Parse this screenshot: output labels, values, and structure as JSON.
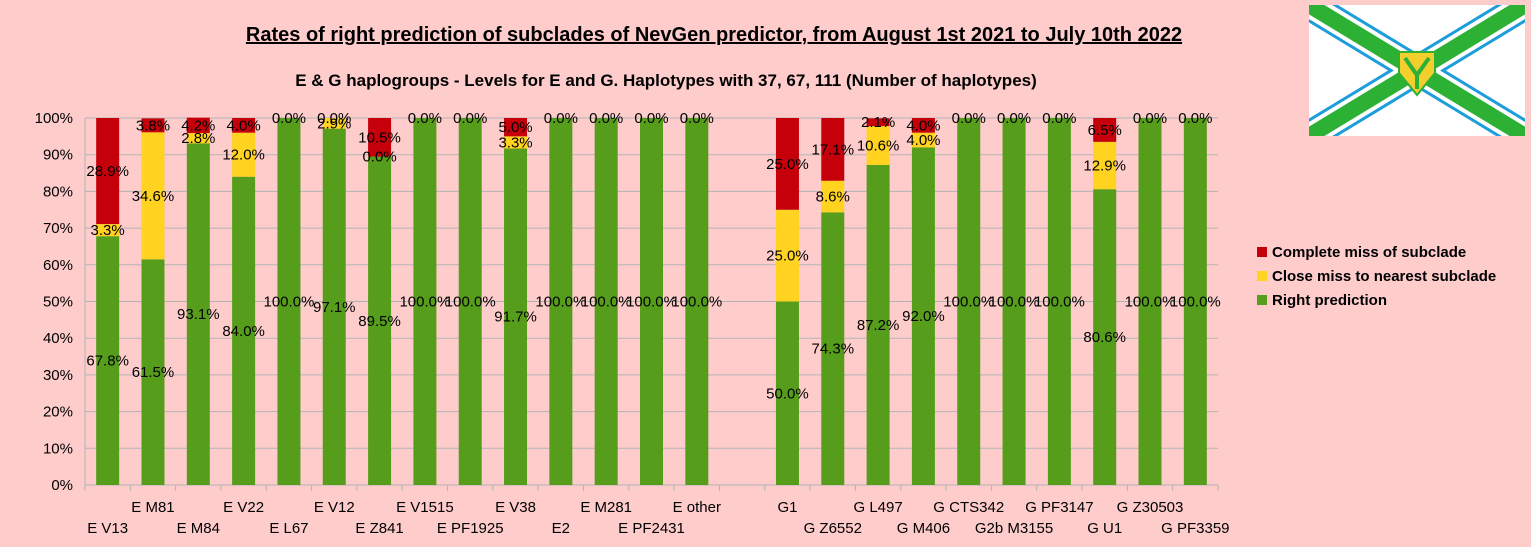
{
  "chart_data": {
    "type": "bar",
    "stacked": true,
    "title": "Rates of right prediction of subclades of NevGen predictor, from August 1st 2021 to July 10th 2022",
    "subtitle": "E & G haplogroups - Levels for E and G. Haplotypes with 37, 67, 111 (Number of haplotypes)",
    "y_ticks": [
      "0%",
      "10%",
      "20%",
      "30%",
      "40%",
      "50%",
      "60%",
      "70%",
      "80%",
      "90%",
      "100%"
    ],
    "ylim": [
      0,
      100
    ],
    "grid": true,
    "legend_position": "right",
    "categories": [
      "E V13",
      "E M81",
      "E M84",
      "E V22",
      "E L67",
      "E V12",
      "E Z841",
      "E V1515",
      "E PF1925",
      "E V38",
      "E2",
      "E M281",
      "E PF2431",
      "E other",
      "",
      "G1",
      "G Z6552",
      "G L497",
      "G M406",
      "G CTS342",
      "G2b M3155",
      "G PF3147",
      "G U1",
      "G Z30503",
      "G PF3359"
    ],
    "series": [
      {
        "name": "Right prediction",
        "color": "#579d1c",
        "values": [
          67.8,
          61.5,
          93.1,
          84.0,
          100.0,
          97.1,
          89.5,
          100.0,
          100.0,
          91.7,
          100.0,
          100.0,
          100.0,
          100.0,
          null,
          50.0,
          74.3,
          87.2,
          92.0,
          100.0,
          100.0,
          100.0,
          80.6,
          100.0,
          100.0
        ],
        "labels": [
          "67.8%",
          "61.5%",
          "93.1%",
          "84.0%",
          "100.0%",
          "97.1%",
          "89.5%",
          "100.0%",
          "100.0%",
          "91.7%",
          "100.0%",
          "100.0%",
          "100.0%",
          "100.0%",
          "",
          "50.0%",
          "74.3%",
          "87.2%",
          "92.0%",
          "100.0%",
          "100.0%",
          "100.0%",
          "80.6%",
          "100.0%",
          "100.0%"
        ]
      },
      {
        "name": "Close miss to nearest subclade",
        "color": "#ffd320",
        "values": [
          3.3,
          34.6,
          2.8,
          12.0,
          0.0,
          2.9,
          0.0,
          0.0,
          0.0,
          3.3,
          0.0,
          0.0,
          0.0,
          0.0,
          null,
          25.0,
          8.6,
          10.6,
          4.0,
          0.0,
          0.0,
          0.0,
          12.9,
          0.0,
          0.0
        ],
        "labels": [
          "3.3%",
          "34.6%",
          "2.8%",
          "12.0%",
          "",
          "2.9%",
          "0.0%",
          "",
          "",
          "3.3%",
          "",
          "",
          "",
          "",
          "",
          "25.0%",
          "8.6%",
          "10.6%",
          "4.0%",
          "",
          "",
          "",
          "12.9%",
          "",
          ""
        ]
      },
      {
        "name": "Complete miss of subclade",
        "color": "#c5000b",
        "values": [
          28.9,
          3.8,
          4.2,
          4.0,
          0.0,
          0.0,
          10.5,
          0.0,
          0.0,
          5.0,
          0.0,
          0.0,
          0.0,
          0.0,
          null,
          25.0,
          17.1,
          2.1,
          4.0,
          0.0,
          0.0,
          0.0,
          6.5,
          0.0,
          0.0
        ],
        "labels": [
          "28.9%",
          "3.8%",
          "4.2%",
          "4.0%",
          "0.0%",
          "0.0%",
          "10.5%",
          "0.0%",
          "0.0%",
          "5.0%",
          "0.0%",
          "0.0%",
          "0.0%",
          "0.0%",
          "",
          "25.0%",
          "17.1%",
          "2.1%",
          "4.0%",
          "0.0%",
          "0.0%",
          "0.0%",
          "6.5%",
          "0.0%",
          "0.0%"
        ]
      }
    ]
  },
  "legend": [
    {
      "label": "Complete miss of subclade",
      "color": "#c5000b"
    },
    {
      "label": "Close miss to nearest subclade",
      "color": "#ffd320"
    },
    {
      "label": "Right prediction",
      "color": "#579d1c"
    }
  ],
  "flag": {
    "icon": "nevgen-flag-logo",
    "green": "#2db134",
    "blue": "#1e9ddb",
    "yellow": "#f2cf2c"
  }
}
